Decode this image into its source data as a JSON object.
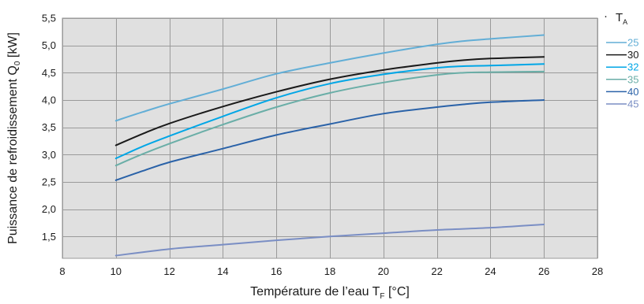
{
  "chart_data": {
    "type": "line",
    "title": "",
    "xlabel": {
      "main": "Température de l’eau T",
      "sub": "F",
      "unit": " [°C]"
    },
    "ylabel": {
      "main": "Puissance de refroidissement Q",
      "sub": "0",
      "unit": " [kW]"
    },
    "xlim": [
      8,
      28
    ],
    "ylim": [
      1.1,
      5.5
    ],
    "xticks": [
      8,
      10,
      12,
      14,
      16,
      18,
      20,
      22,
      24,
      26,
      28
    ],
    "yticks": [
      "1,5",
      "2,0",
      "2,5",
      "3,0",
      "3,5",
      "4,0",
      "4,5",
      "5,0",
      "5,5"
    ],
    "yticks_values": [
      1.5,
      2.0,
      2.5,
      3.0,
      3.5,
      4.0,
      4.5,
      5.0,
      5.5
    ],
    "grid": true,
    "background_color": "#e0e0e0",
    "grid_color": "#9a9a9a",
    "legend": {
      "placement": "right",
      "title_main": "T",
      "title_sub": "A"
    },
    "series": [
      {
        "name": "25",
        "color": "#62aed6",
        "x": [
          10,
          11,
          12,
          14,
          16,
          18,
          20,
          22,
          23,
          24,
          26
        ],
        "y": [
          3.62,
          3.78,
          3.93,
          4.2,
          4.48,
          4.68,
          4.86,
          5.02,
          5.08,
          5.12,
          5.19
        ]
      },
      {
        "name": "30",
        "color": "#1a1a1a",
        "x": [
          10,
          11,
          12,
          14,
          16,
          18,
          20,
          22,
          23,
          24,
          26
        ],
        "y": [
          3.17,
          3.38,
          3.57,
          3.88,
          4.15,
          4.38,
          4.55,
          4.68,
          4.73,
          4.76,
          4.79
        ]
      },
      {
        "name": "32",
        "color": "#00a6e6",
        "x": [
          10,
          11,
          12,
          14,
          16,
          18,
          20,
          22,
          23,
          24,
          26
        ],
        "y": [
          2.93,
          3.15,
          3.34,
          3.7,
          4.04,
          4.3,
          4.47,
          4.59,
          4.62,
          4.63,
          4.66
        ]
      },
      {
        "name": "35",
        "color": "#6aaea7",
        "x": [
          10,
          11,
          12,
          14,
          16,
          18,
          20,
          22,
          23,
          24,
          26
        ],
        "y": [
          2.8,
          3.01,
          3.2,
          3.55,
          3.87,
          4.13,
          4.32,
          4.46,
          4.5,
          4.51,
          4.52
        ]
      },
      {
        "name": "40",
        "color": "#2a62a8",
        "x": [
          10,
          11,
          12,
          14,
          16,
          18,
          20,
          22,
          23,
          24,
          26
        ],
        "y": [
          2.53,
          2.7,
          2.86,
          3.11,
          3.36,
          3.56,
          3.75,
          3.87,
          3.92,
          3.96,
          4.0
        ]
      },
      {
        "name": "45",
        "color": "#7a8ec4",
        "x": [
          10,
          12,
          14,
          16,
          18,
          20,
          22,
          24,
          26
        ],
        "y": [
          1.15,
          1.27,
          1.35,
          1.43,
          1.5,
          1.56,
          1.62,
          1.66,
          1.72
        ]
      }
    ]
  }
}
